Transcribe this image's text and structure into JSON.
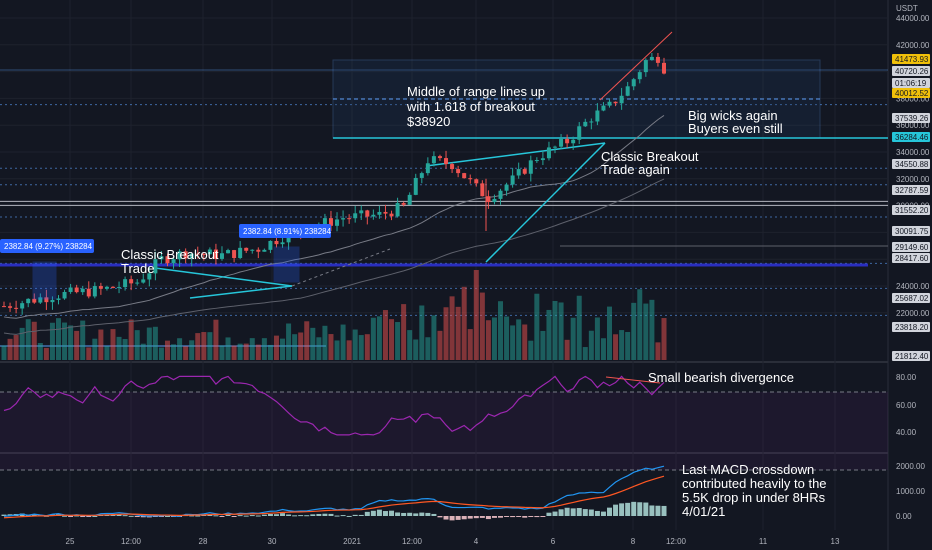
{
  "chart_data": {
    "type": "candlestick",
    "currency": "USDT",
    "price_axis_ticks": [
      44000,
      42000,
      40000,
      38000,
      36000,
      34000,
      32000,
      30000,
      28000,
      26000,
      24000,
      22000
    ],
    "price_tags": [
      {
        "label": "41473.93",
        "style": "yellow"
      },
      {
        "label": "40720.26",
        "style": "white"
      },
      {
        "label": "01:06:19",
        "style": "white"
      },
      {
        "label": "40012.52",
        "style": "yellow"
      },
      {
        "label": "37539.26",
        "style": "white"
      },
      {
        "label": "36284.46",
        "style": "blue"
      },
      {
        "label": "34550.88",
        "style": "white"
      },
      {
        "label": "32787.59",
        "style": "white"
      },
      {
        "label": "31552.20",
        "style": "white"
      },
      {
        "label": "30091.75",
        "style": "white"
      },
      {
        "label": "29149.60",
        "style": "white"
      },
      {
        "label": "28417.60",
        "style": "white"
      },
      {
        "label": "25687.02",
        "style": "white"
      },
      {
        "label": "23818.20",
        "style": "white"
      },
      {
        "label": "21812.40",
        "style": "white"
      }
    ],
    "x_ticks": [
      "25",
      "12:00",
      "28",
      "30",
      "2021",
      "12:00",
      "4",
      "6",
      "8",
      "12:00",
      "11",
      "13"
    ],
    "rsi_ticks": [
      "80.00",
      "60.00",
      "40.00"
    ],
    "macd_ticks": [
      "2000.00",
      "1000.00",
      "0.00"
    ],
    "measure_boxes": [
      {
        "label": "2382.84 (9.27%) 238284"
      },
      {
        "label": "2382.84 (8.91%) 238284"
      }
    ],
    "annotations": [
      {
        "lines": [
          "Classic Breakout",
          "Trade"
        ]
      },
      {
        "lines": [
          "Middle of range lines up",
          "with 1.618 of breakout",
          "$38920"
        ]
      },
      {
        "lines": [
          "Big wicks again",
          "Buyers even still"
        ]
      },
      {
        "lines": [
          "Classic Breakout",
          "Trade again"
        ]
      },
      {
        "lines": [
          "Small bearish divergence"
        ]
      },
      {
        "lines": [
          "Last MACD crossdown",
          "contributed heavily to the",
          "5.5K drop in under 8HRs",
          "4/01/21"
        ]
      }
    ],
    "up_color": "#26a69a",
    "down_color": "#ef5350",
    "rsi_color": "#9c27b0",
    "macd_line_color": "#2196f3",
    "signal_line_color": "#ff5722"
  }
}
